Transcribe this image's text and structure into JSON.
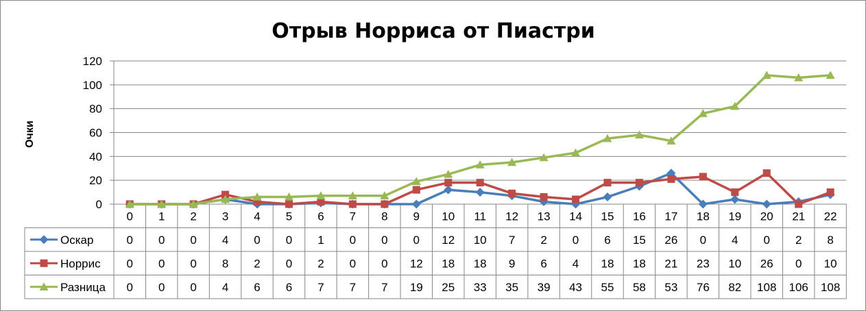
{
  "chart_data": {
    "type": "line",
    "title": "Отрыв Норриса от Пиастри",
    "ylabel": "Очки",
    "xlabel": "",
    "ylim": [
      0,
      120
    ],
    "yticks": [
      0,
      20,
      40,
      60,
      80,
      100,
      120
    ],
    "grid": true,
    "legend": "data-table-left",
    "categories": [
      "0",
      "1",
      "2",
      "3",
      "4",
      "5",
      "6",
      "7",
      "8",
      "9",
      "10",
      "11",
      "12",
      "13",
      "14",
      "15",
      "16",
      "17",
      "18",
      "19",
      "20",
      "21",
      "22"
    ],
    "series": [
      {
        "name": "Оскар",
        "color": "#4a7ebb",
        "marker": "diamond",
        "values": [
          0,
          0,
          0,
          4,
          0,
          0,
          1,
          0,
          0,
          0,
          12,
          10,
          7,
          2,
          0,
          6,
          15,
          26,
          0,
          4,
          0,
          2,
          8
        ]
      },
      {
        "name": "Норрис",
        "color": "#be4b48",
        "marker": "square",
        "values": [
          0,
          0,
          0,
          8,
          2,
          0,
          2,
          0,
          0,
          12,
          18,
          18,
          9,
          6,
          4,
          18,
          18,
          21,
          23,
          10,
          26,
          0,
          10
        ]
      },
      {
        "name": "Разница",
        "color": "#98b954",
        "marker": "triangle",
        "values": [
          0,
          0,
          0,
          4,
          6,
          6,
          7,
          7,
          7,
          19,
          25,
          33,
          35,
          39,
          43,
          55,
          58,
          53,
          76,
          82,
          108,
          106,
          108
        ]
      }
    ]
  }
}
